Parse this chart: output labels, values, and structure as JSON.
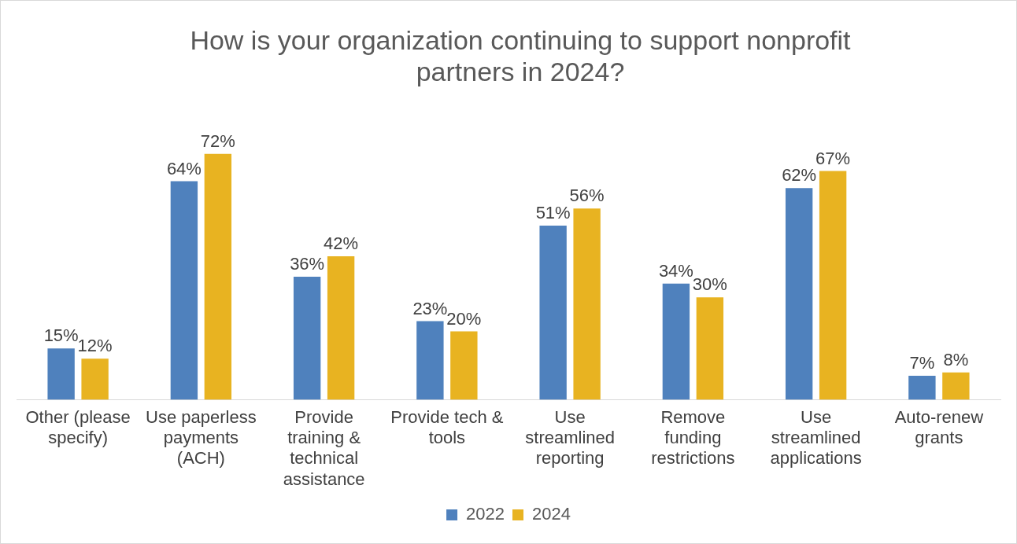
{
  "chart_data": {
    "type": "bar",
    "title": "How is your organization continuing to support nonprofit partners in 2024?",
    "categories": [
      "Other (please specify)",
      "Use paperless payments (ACH)",
      "Provide training & technical assistance",
      "Provide tech & tools",
      "Use streamlined reporting",
      "Remove funding restrictions",
      "Use streamlined applications",
      "Auto-renew grants"
    ],
    "series": [
      {
        "name": "2022",
        "color": "#4f81bd",
        "values": [
          15,
          64,
          36,
          23,
          51,
          34,
          62,
          7
        ],
        "value_labels": [
          "15%",
          "64%",
          "36%",
          "23%",
          "51%",
          "34%",
          "62%",
          "7%"
        ]
      },
      {
        "name": "2024",
        "color": "#e8b321",
        "values": [
          12,
          72,
          42,
          20,
          56,
          30,
          67,
          8
        ],
        "value_labels": [
          "12%",
          "72%",
          "42%",
          "20%",
          "56%",
          "30%",
          "67%",
          "8%"
        ]
      }
    ],
    "legend": "bottom",
    "grid": false
  }
}
